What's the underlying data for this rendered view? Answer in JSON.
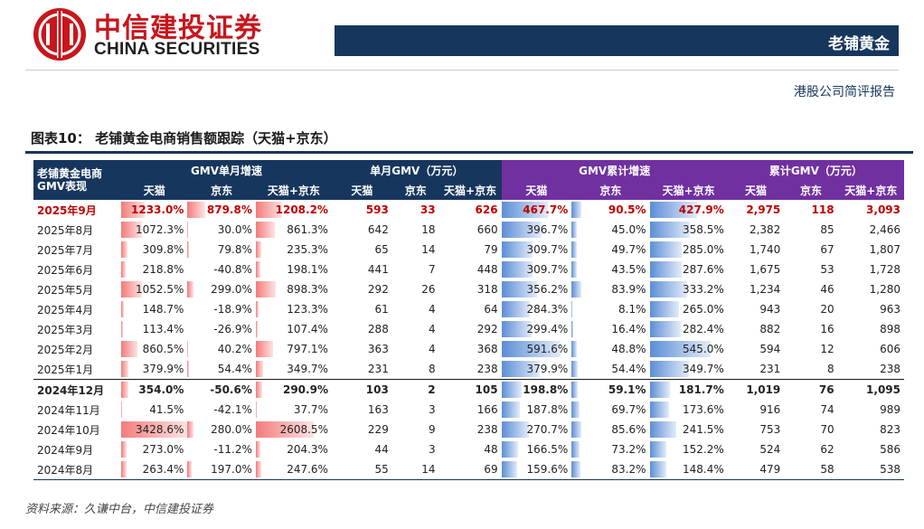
{
  "header": {
    "brand_cn": "中信建投证券",
    "brand_en": "CHINA SECURITIES",
    "section_title": "老铺黄金",
    "report_type": "港股公司简评报告",
    "colors": {
      "brand_red": "#c8161d",
      "navy": "#17365d",
      "purple": "#7030a0"
    }
  },
  "figure": {
    "title": "图表10：   老铺黄金电商销售额跟踪（天猫+京东）",
    "source": "资料来源：久谦中台，中信建投证券"
  },
  "table": {
    "corner": [
      "老铺黄金电商",
      "GMV表现"
    ],
    "groups": [
      "GMV单月增速",
      "单月GMV（万元）",
      "GMV累计增速",
      "累计GMV（万元）"
    ],
    "subheaders": [
      "天猫",
      "京东",
      "天猫+京东",
      "天猫",
      "京东",
      "天猫+京东",
      "天猫",
      "京东",
      "天猫+京东",
      "天猫",
      "京东",
      "天猫+京东"
    ],
    "rows": [
      {
        "date": "2025年9月",
        "c": [
          "1233.0%",
          "879.8%",
          "1208.2%",
          "593",
          "33",
          "626",
          "467.7%",
          "90.5%",
          "427.9%",
          "2,975",
          "118",
          "3,093"
        ],
        "n": [
          1233.0,
          879.8,
          1208.2,
          467.7,
          90.5,
          427.9
        ]
      },
      {
        "date": "2025年8月",
        "c": [
          "1072.3%",
          "30.0%",
          "861.3%",
          "642",
          "18",
          "660",
          "396.7%",
          "45.0%",
          "358.5%",
          "2,382",
          "85",
          "2,466"
        ],
        "n": [
          1072.3,
          30.0,
          861.3,
          396.7,
          45.0,
          358.5
        ]
      },
      {
        "date": "2025年7月",
        "c": [
          "309.8%",
          "79.8%",
          "235.3%",
          "65",
          "14",
          "79",
          "309.7%",
          "49.7%",
          "285.0%",
          "1,740",
          "67",
          "1,807"
        ],
        "n": [
          309.8,
          79.8,
          235.3,
          309.7,
          49.7,
          285.0
        ]
      },
      {
        "date": "2025年6月",
        "c": [
          "218.8%",
          "-40.8%",
          "198.1%",
          "441",
          "7",
          "448",
          "309.7%",
          "43.5%",
          "287.6%",
          "1,675",
          "53",
          "1,728"
        ],
        "n": [
          218.8,
          -40.8,
          198.1,
          309.7,
          43.5,
          287.6
        ]
      },
      {
        "date": "2025年5月",
        "c": [
          "1052.5%",
          "299.0%",
          "898.3%",
          "292",
          "26",
          "318",
          "356.2%",
          "83.9%",
          "333.2%",
          "1,234",
          "46",
          "1,280"
        ],
        "n": [
          1052.5,
          299.0,
          898.3,
          356.2,
          83.9,
          333.2
        ]
      },
      {
        "date": "2025年4月",
        "c": [
          "148.7%",
          "-18.9%",
          "123.3%",
          "61",
          "4",
          "64",
          "284.3%",
          "8.1%",
          "265.0%",
          "943",
          "20",
          "963"
        ],
        "n": [
          148.7,
          -18.9,
          123.3,
          284.3,
          8.1,
          265.0
        ]
      },
      {
        "date": "2025年3月",
        "c": [
          "113.4%",
          "-26.9%",
          "107.4%",
          "288",
          "4",
          "292",
          "299.4%",
          "16.4%",
          "282.4%",
          "882",
          "16",
          "898"
        ],
        "n": [
          113.4,
          -26.9,
          107.4,
          299.4,
          16.4,
          282.4
        ]
      },
      {
        "date": "2025年2月",
        "c": [
          "860.5%",
          "40.2%",
          "797.1%",
          "363",
          "4",
          "368",
          "591.6%",
          "48.8%",
          "545.0%",
          "594",
          "12",
          "606"
        ],
        "n": [
          860.5,
          40.2,
          797.1,
          591.6,
          48.8,
          545.0
        ]
      },
      {
        "date": "2025年1月",
        "c": [
          "379.9%",
          "54.4%",
          "349.7%",
          "231",
          "8",
          "238",
          "379.9%",
          "54.4%",
          "349.7%",
          "231",
          "8",
          "238"
        ],
        "n": [
          379.9,
          54.4,
          349.7,
          379.9,
          54.4,
          349.7
        ]
      },
      {
        "date": "2024年12月",
        "c": [
          "354.0%",
          "-50.6%",
          "290.9%",
          "103",
          "2",
          "105",
          "198.8%",
          "59.1%",
          "181.7%",
          "1,019",
          "76",
          "1,095"
        ],
        "n": [
          354.0,
          -50.6,
          290.9,
          198.8,
          59.1,
          181.7
        ]
      },
      {
        "date": "2024年11月",
        "c": [
          "41.5%",
          "-42.1%",
          "37.7%",
          "163",
          "3",
          "166",
          "187.8%",
          "69.7%",
          "173.6%",
          "916",
          "74",
          "989"
        ],
        "n": [
          41.5,
          -42.1,
          37.7,
          187.8,
          69.7,
          173.6
        ]
      },
      {
        "date": "2024年10月",
        "c": [
          "3428.6%",
          "280.0%",
          "2608.5%",
          "229",
          "9",
          "238",
          "270.7%",
          "85.6%",
          "241.5%",
          "753",
          "70",
          "823"
        ],
        "n": [
          3428.6,
          280.0,
          2608.5,
          270.7,
          85.6,
          241.5
        ]
      },
      {
        "date": "2024年9月",
        "c": [
          "273.0%",
          "-11.2%",
          "204.3%",
          "44",
          "3",
          "48",
          "166.5%",
          "73.2%",
          "152.2%",
          "524",
          "62",
          "586"
        ],
        "n": [
          273.0,
          -11.2,
          204.3,
          166.5,
          73.2,
          152.2
        ]
      },
      {
        "date": "2024年8月",
        "c": [
          "263.4%",
          "197.0%",
          "247.6%",
          "55",
          "14",
          "69",
          "159.6%",
          "83.2%",
          "148.4%",
          "479",
          "58",
          "538"
        ],
        "n": [
          263.4,
          197.0,
          247.6,
          159.6,
          83.2,
          148.4
        ]
      }
    ]
  }
}
